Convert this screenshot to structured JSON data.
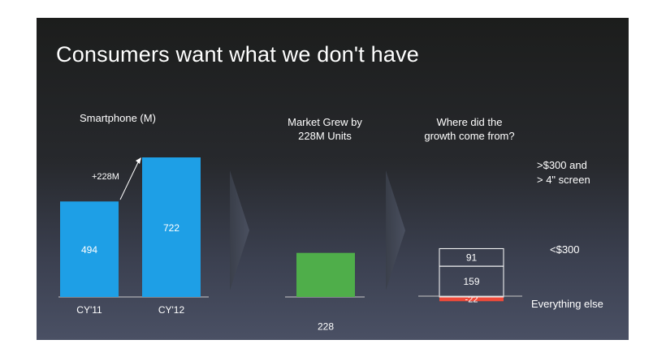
{
  "slide": {
    "title": "Consumers want what we don't have"
  },
  "chart_data": [
    {
      "type": "bar",
      "title": "Smartphone (M)",
      "categories": [
        "CY'11",
        "CY'12"
      ],
      "values": [
        494,
        722
      ],
      "annotation": "+228M",
      "color": "#1e9fe6"
    },
    {
      "type": "bar",
      "title": "Market Grew by 228M Units",
      "categories": [
        ""
      ],
      "values": [
        228
      ],
      "color": "#4fae4a"
    },
    {
      "type": "bar",
      "title": "Where did the growth come from?",
      "stacked": true,
      "series": [
        {
          "name": "Everything else",
          "values": [
            -22
          ],
          "color": "#ee4a3a"
        },
        {
          "name": "<$300",
          "values": [
            159
          ]
        },
        {
          "name": ">$300 and > 4\" screen",
          "values": [
            91
          ]
        }
      ]
    }
  ],
  "colors": {
    "blue_bar": "#1e9fe6",
    "green_bar": "#4fae4a",
    "red_bar": "#ee4a3a",
    "text": "#ffffff"
  },
  "icons": [
    "right-chevron-arrow",
    "diagonal-arrow"
  ]
}
